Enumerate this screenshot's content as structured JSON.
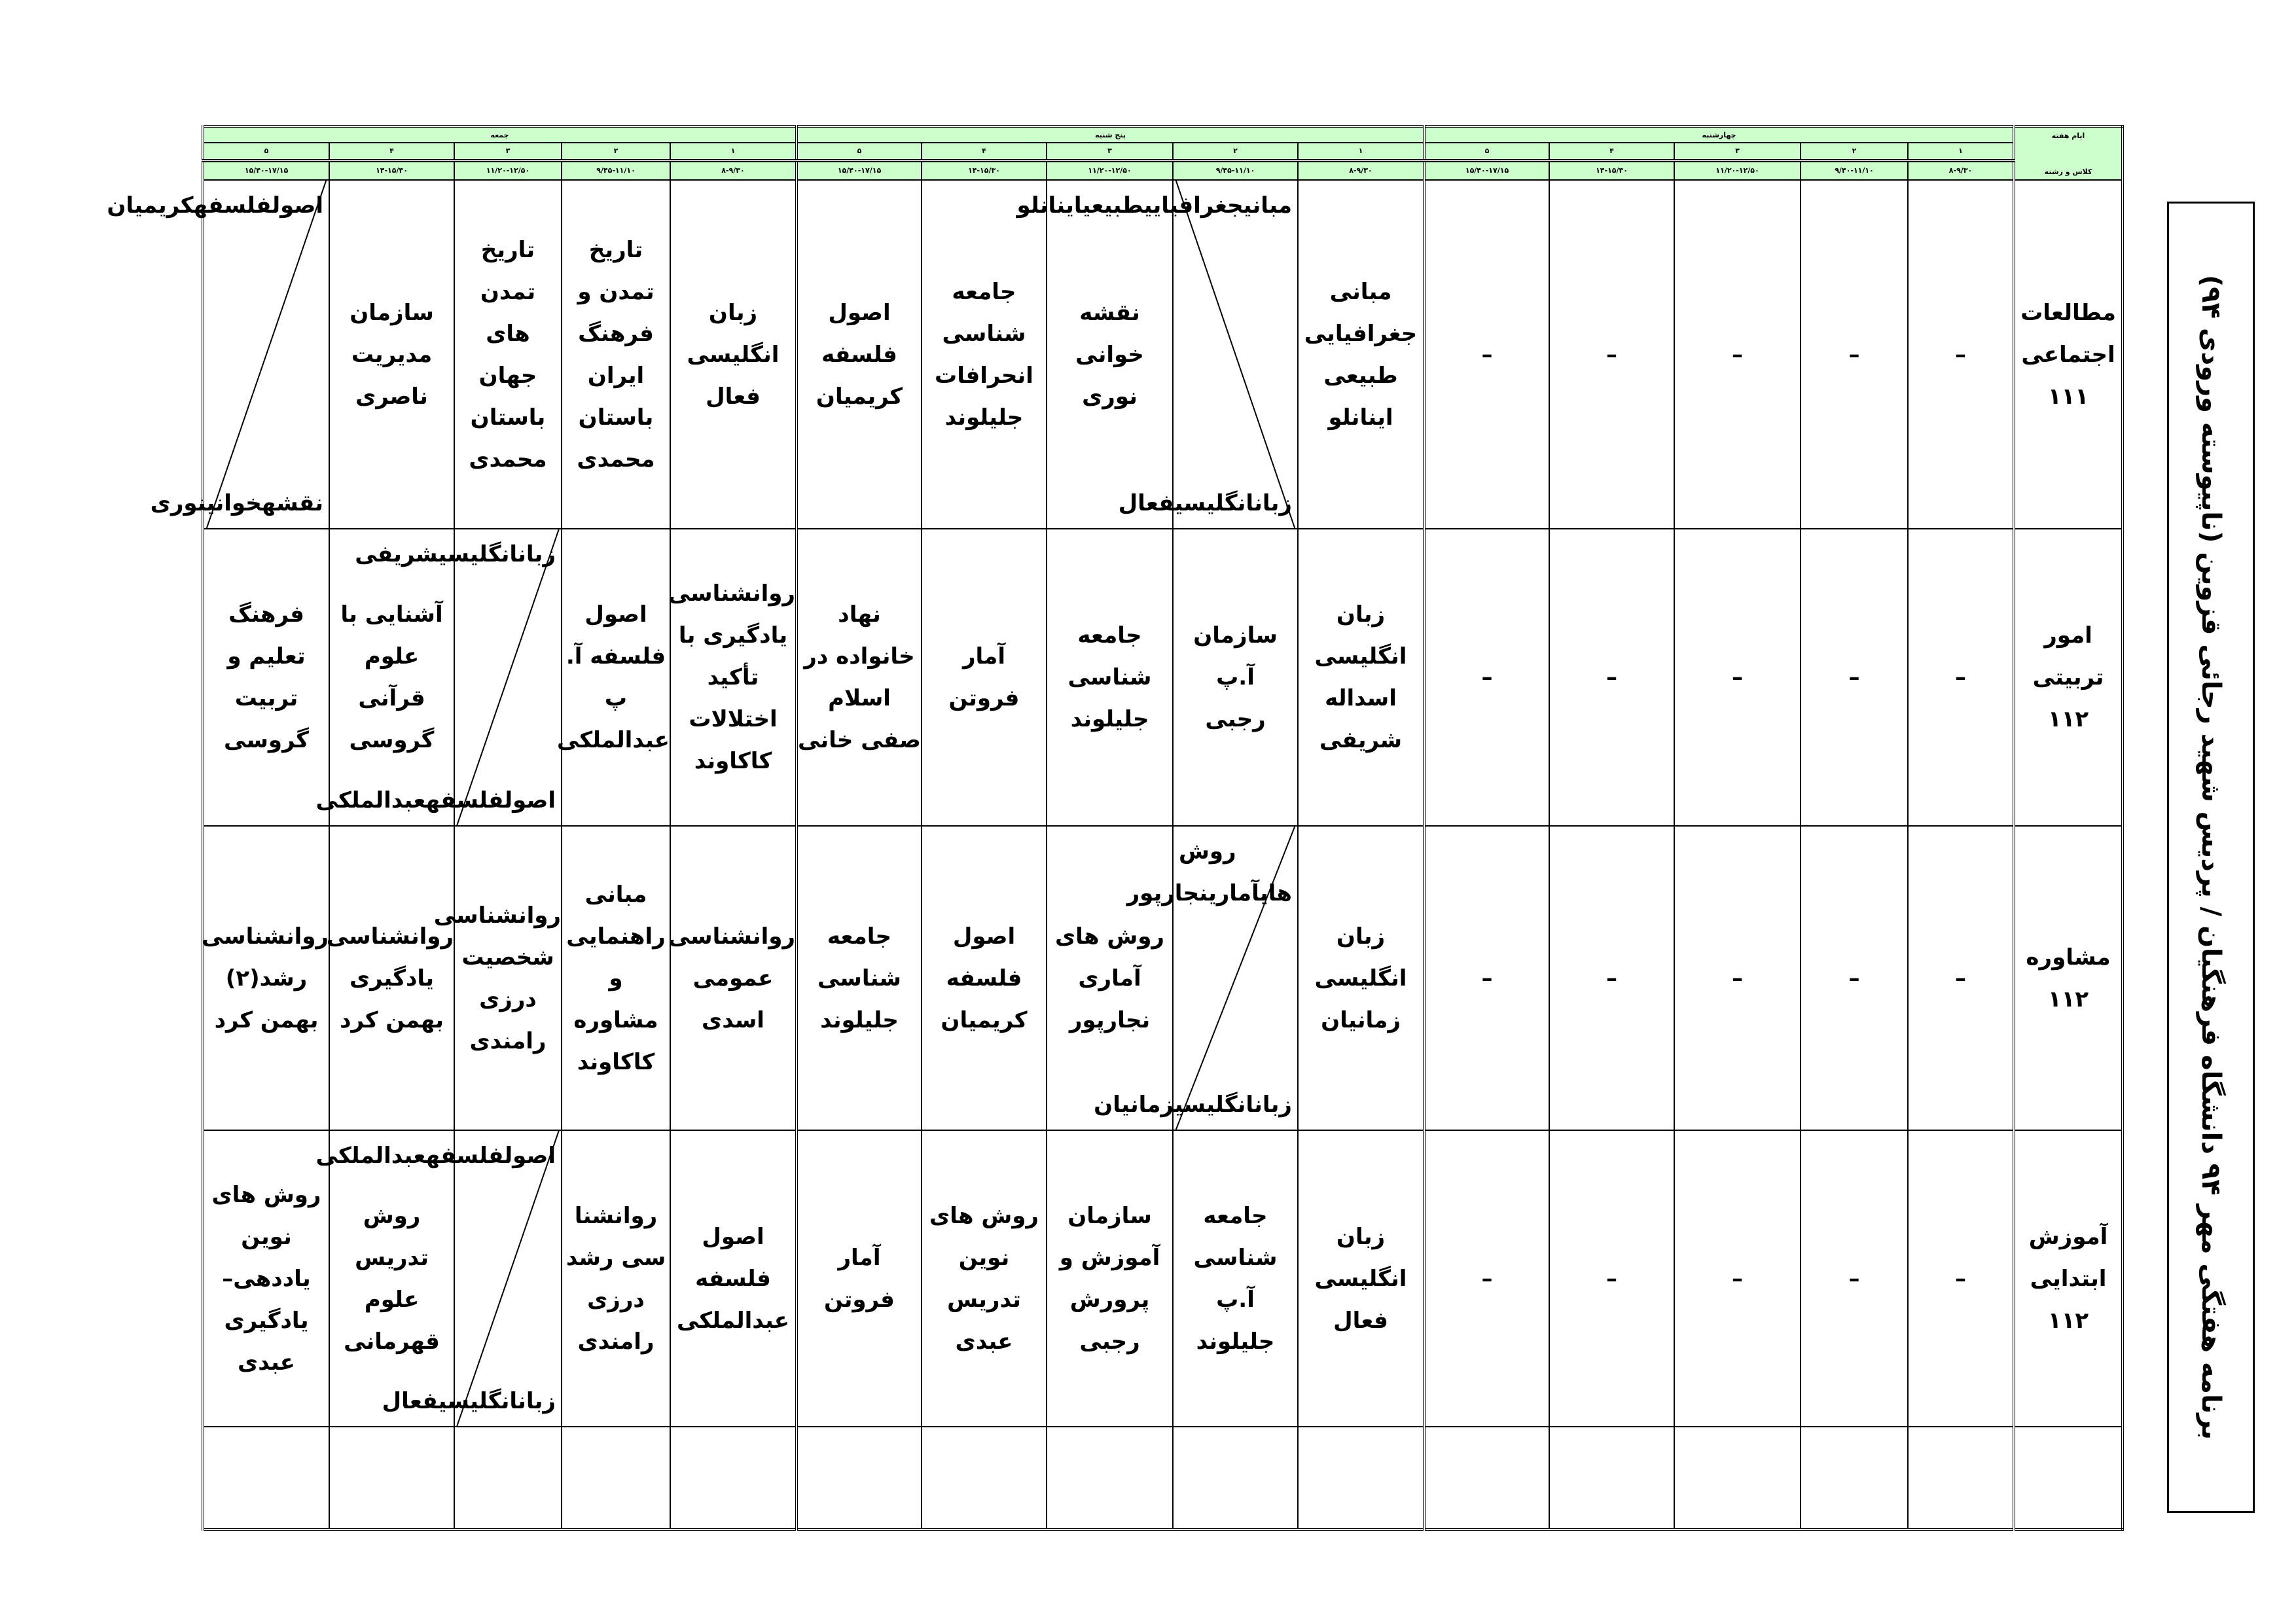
{
  "title": "برنامه هفتگی مهر ۹۴ دانشگاه فرهنگیان / پردیس شهید رجائی قزوین (ناپیوسته ورودی ۹۴)",
  "colors": {
    "header_bg": "#ccffcc",
    "border": "#000000"
  },
  "corner": {
    "top": "ایام هفته",
    "bottom": "کلاس و رشته"
  },
  "days": [
    {
      "name": "چهارشنبه",
      "slots": [
        "۱",
        "۲",
        "۳",
        "۴",
        "۵"
      ],
      "times": [
        "۸-۹/۳۰",
        "۹/۴۰-۱۱/۱۰",
        "۱۱/۲۰-۱۲/۵۰",
        "۱۴-۱۵/۳۰",
        "۱۵/۴۰-۱۷/۱۵"
      ]
    },
    {
      "name": "پنج شنبه",
      "slots": [
        "۱",
        "۲",
        "۳",
        "۴",
        "۵"
      ],
      "times": [
        "۸-۹/۳۰",
        "۹/۴۵-۱۱/۱۰",
        "۱۱/۲۰-۱۲/۵۰",
        "۱۴-۱۵/۳۰",
        "۱۵/۴۰-۱۷/۱۵"
      ]
    },
    {
      "name": "جمعه",
      "slots": [
        "۱",
        "۲",
        "۳",
        "۴",
        "۵"
      ],
      "times": [
        "۸-۹/۳۰",
        "۹/۴۵-۱۱/۱۰",
        "۱۱/۲۰-۱۲/۵۰",
        "۱۴-۱۵/۳۰",
        "۱۵/۴۰-۱۷/۱۵"
      ]
    }
  ],
  "rows": [
    {
      "label": [
        "مطالعات",
        "اجتماعی",
        "۱۱۱"
      ],
      "cells": [
        [
          "–"
        ],
        [
          "–"
        ],
        [
          "–"
        ],
        [
          "–"
        ],
        [
          "–"
        ],
        [
          "مبانی",
          "جغرافیایی",
          "طبیعی",
          "اینانلو"
        ],
        {
          "diag": "tl-br",
          "top": [
            "مبانی",
            "جغرافیایی",
            "طبیعی",
            "اینانلو"
          ],
          "bottom": [
            "زبان",
            "انگلیسی",
            "فعال"
          ]
        },
        [
          "نقشه",
          "خوانی",
          "نوری"
        ],
        [
          "جامعه",
          "شناسی",
          "انحرافات",
          "جلیلوند"
        ],
        [
          "اصول",
          "فلسفه",
          "کریمیان"
        ],
        [
          "زبان",
          "انگلیسی",
          "فعال"
        ],
        [
          "تاریخ",
          "تمدن و",
          "فرهنگ",
          "ایران",
          "باستان",
          "محمدی"
        ],
        [
          "تاریخ",
          "تمدن",
          "های",
          "جهان",
          "باستان",
          "محمدی"
        ],
        [
          "سازمان",
          "مدیریت",
          "ناصری"
        ],
        {
          "diag": "tr-bl",
          "top": [
            "اصول",
            "فلسفه",
            "کریمیان"
          ],
          "bottom": [
            "نقشه",
            "خوانی",
            "نوری"
          ]
        }
      ]
    },
    {
      "label": [
        "امور",
        "تربیتی",
        "۱۱۲"
      ],
      "cells": [
        [
          "–"
        ],
        [
          "–"
        ],
        [
          "–"
        ],
        [
          "–"
        ],
        [
          "–"
        ],
        [
          "زبان",
          "انگلیسی",
          "اسداله",
          "شریفی"
        ],
        [
          "سازمان",
          "آ.پ",
          "رجبی"
        ],
        [
          "جامعه",
          "شناسی",
          "جلیلوند"
        ],
        [
          "آمار",
          "فروتن"
        ],
        [
          "نهاد",
          "خانواده در",
          "اسلام",
          "صفی خانی"
        ],
        [
          "روانشناسی",
          "یادگیری با",
          "تأکید",
          "اختلالات",
          "کاکاوند"
        ],
        {
          "small": true,
          "lines": [
            "اصول",
            "فلسفه آ. پ",
            "عبدالملکی"
          ]
        },
        {
          "diag": "tr-bl",
          "top": [
            "زبان",
            "انگلیسی",
            "شریفی"
          ],
          "bottom": [
            "اصول",
            "فلسفه",
            "عبدالملکی"
          ]
        },
        [
          "آشنایی با",
          "علوم",
          "قرآنی",
          "گروسی"
        ],
        [
          "فرهنگ",
          "تعلیم و",
          "تربیت",
          "گروسی"
        ]
      ]
    },
    {
      "label": [
        "مشاوره",
        "۱۱۲"
      ],
      "cells": [
        [
          "–"
        ],
        [
          "–"
        ],
        [
          "–"
        ],
        [
          "–"
        ],
        [
          "–"
        ],
        [
          "زبان",
          "انگلیسی",
          "زمانیان"
        ],
        {
          "diag": "tr-bl",
          "top": [
            "روش های",
            "آماری",
            "نجارپور"
          ],
          "bottom": [
            "زبان",
            "انگلیسی",
            "زمانیان"
          ]
        },
        [
          "روش های",
          "آماری",
          "نجارپور"
        ],
        [
          "اصول",
          "فلسفه",
          "کریمیان"
        ],
        [
          "جامعه",
          "شناسی",
          "جلیلوند"
        ],
        [
          "روانشناسی",
          "عمومی",
          "اسدی"
        ],
        [
          "مبانی",
          "راهنمایی",
          "و",
          "مشاوره",
          "کاکاوند"
        ],
        [
          "روانشناسی",
          "شخصیت",
          "درزی",
          "رامندی"
        ],
        [
          "روانشناسی",
          "یادگیری",
          "بهمن کرد"
        ],
        [
          "روانشناسی",
          "رشد(۲)",
          "بهمن کرد"
        ]
      ]
    },
    {
      "label": [
        "آموزش",
        "ابتدایی",
        "۱۱۲"
      ],
      "cells": [
        [
          "–"
        ],
        [
          "–"
        ],
        [
          "–"
        ],
        [
          "–"
        ],
        [
          "–"
        ],
        [
          "زبان",
          "انگلیسی",
          "فعال"
        ],
        [
          "جامعه",
          "شناسی",
          "آ.پ",
          "جلیلوند"
        ],
        [
          "سازمان",
          "آموزش و",
          "پرورش",
          "رجبی"
        ],
        [
          "روش های",
          "نوین",
          "تدریس",
          "عبدی"
        ],
        [
          "آمار",
          "فروتن"
        ],
        [
          "اصول",
          "فلسفه",
          "عبدالملکی"
        ],
        [
          "روانشنا",
          "سی رشد",
          "درزی",
          "رامندی"
        ],
        {
          "diag": "tr-bl",
          "top": [
            "اصول",
            "فلسفه",
            "عبدالملکی"
          ],
          "bottom": [
            "زبان",
            "انگلیسی",
            "فعال"
          ]
        },
        [
          "روش",
          "تدریس",
          "علوم",
          "قهرمانی"
        ],
        [
          "روش های",
          "نوین",
          "یاددهی–",
          "یادگیری",
          "عبدی"
        ]
      ]
    },
    {
      "label": [],
      "cells": [
        [],
        [],
        [],
        [],
        [],
        [],
        [],
        [],
        [],
        [],
        [],
        [],
        [],
        [],
        []
      ]
    }
  ]
}
